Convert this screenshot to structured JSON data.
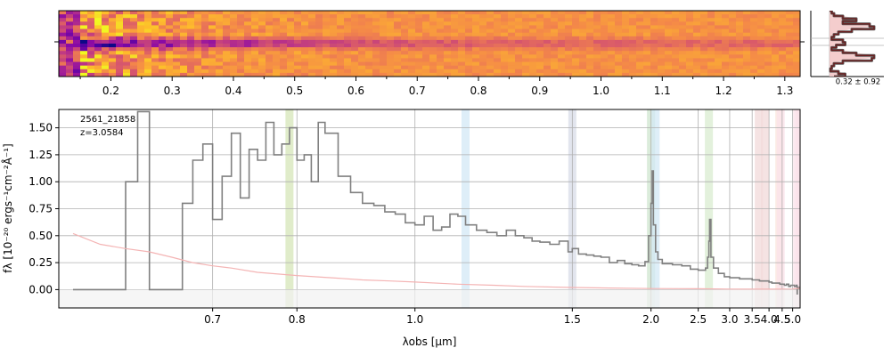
{
  "figure": {
    "object_id": "2561_21858",
    "redshift_label": "z=3.0584",
    "profile_stat": "0.32 ± 0.92"
  },
  "colors": {
    "spectrum": "#808080",
    "error": "#f4b4b4",
    "profile_line": "#6b1f1f",
    "profile_fill": "#f2c4c4",
    "axes": "#000000",
    "grid": "#b0b0b0"
  },
  "chart_data": [
    {
      "type": "heatmap",
      "name": "2D spectrum",
      "colormap": "plasma",
      "top_axis_ticks": [
        "0.2",
        "0.3",
        "0.4",
        "0.5",
        "0.6",
        "0.7",
        "0.8",
        "0.9",
        "1.0",
        "1.1",
        "1.2",
        "1.3"
      ],
      "top_axis_values": [
        0.2,
        0.3,
        0.4,
        0.5,
        0.6,
        0.7,
        0.8,
        0.9,
        1.0,
        1.1,
        1.2,
        1.3
      ],
      "trace": "bright horizontal trace at center, strongest at short wavelength"
    },
    {
      "type": "line",
      "name": "spatial profile",
      "annotation": "0.32 ± 0.92",
      "profile": [
        0.05,
        0.1,
        0.3,
        0.6,
        0.3,
        0.9,
        1.0,
        0.5,
        0.2,
        0.1,
        0.05,
        0.3,
        0.35,
        0.15,
        0.05,
        0.3,
        0.6,
        1.0,
        0.95,
        0.3,
        0.1,
        0.05,
        0.02,
        0.2,
        0.35,
        0.1
      ]
    },
    {
      "type": "line",
      "title": "",
      "xlabel": "λobs [μm]",
      "ylabel": "fλ [10⁻²⁰ ergs⁻¹cm⁻²Å⁻¹]",
      "x_scale": "reciprocal",
      "x_ticks": [
        "0.7",
        "0.8",
        "1.0",
        "1.5",
        "2.0",
        "2.5",
        "3.0",
        "3.5",
        "4.0",
        "4.5",
        "5.0"
      ],
      "x_tick_values": [
        0.7,
        0.8,
        1.0,
        1.5,
        2.0,
        2.5,
        3.0,
        3.5,
        4.0,
        4.5,
        5.0
      ],
      "y_ticks": [
        "0.00",
        "0.25",
        "0.50",
        "0.75",
        "1.00",
        "1.25",
        "1.50"
      ],
      "y_tick_values": [
        0.0,
        0.25,
        0.5,
        0.75,
        1.0,
        1.25,
        1.5
      ],
      "xlim": [
        0.57,
        5.43
      ],
      "ylim": [
        -0.17,
        1.67
      ],
      "grid": true,
      "legend": "none",
      "line_bands": [
        {
          "x": 0.79,
          "color": "#d6e6b8"
        },
        {
          "x": 1.12,
          "color": "#d3e8f6"
        },
        {
          "x": 1.5,
          "color": "#d8dce8"
        },
        {
          "x": 2.0,
          "color": "#cfe6cf"
        },
        {
          "x": 2.04,
          "color": "#d3e8f6"
        },
        {
          "x": 2.65,
          "color": "#d9ecd0"
        },
        {
          "x": 3.68,
          "color": "#f1dada"
        },
        {
          "x": 3.87,
          "color": "#f1dada"
        },
        {
          "x": 4.38,
          "color": "#fbe7dc"
        },
        {
          "x": 4.44,
          "color": "#fbe2ea"
        },
        {
          "x": 5.25,
          "color": "#fbe2ea"
        },
        {
          "x": 5.41,
          "color": "#fbe2ea"
        }
      ],
      "series": [
        {
          "role": "flux",
          "color": "#808080",
          "x": [
            0.58,
            0.6,
            0.61,
            0.62,
            0.63,
            0.64,
            0.65,
            0.66,
            0.67,
            0.68,
            0.69,
            0.7,
            0.71,
            0.72,
            0.73,
            0.74,
            0.75,
            0.76,
            0.77,
            0.78,
            0.79,
            0.8,
            0.81,
            0.82,
            0.83,
            0.84,
            0.86,
            0.88,
            0.9,
            0.92,
            0.94,
            0.96,
            0.98,
            1.0,
            1.02,
            1.04,
            1.06,
            1.08,
            1.1,
            1.12,
            1.15,
            1.18,
            1.21,
            1.24,
            1.27,
            1.3,
            1.33,
            1.36,
            1.4,
            1.44,
            1.48,
            1.5,
            1.53,
            1.57,
            1.61,
            1.65,
            1.7,
            1.75,
            1.8,
            1.85,
            1.9,
            1.95,
            1.98,
            2.0,
            2.01,
            2.02,
            2.04,
            2.06,
            2.1,
            2.15,
            2.2,
            2.3,
            2.4,
            2.5,
            2.55,
            2.6,
            2.63,
            2.65,
            2.66,
            2.68,
            2.72,
            2.8,
            2.9,
            3.0,
            3.1,
            3.2,
            3.3,
            3.4,
            3.5,
            3.6,
            3.7,
            3.8,
            3.9,
            4.0,
            4.1,
            4.2,
            4.3,
            4.4,
            4.5,
            4.6,
            4.7,
            4.8,
            4.9,
            5.0,
            5.1,
            5.2,
            5.24,
            5.25,
            5.26,
            5.3,
            5.35,
            5.42
          ],
          "y": [
            0.0,
            0.0,
            0.0,
            1.0,
            1.65,
            0.0,
            0.0,
            0.0,
            0.8,
            1.2,
            1.35,
            0.65,
            1.05,
            1.45,
            0.85,
            1.3,
            1.2,
            1.55,
            1.25,
            1.35,
            1.5,
            1.2,
            1.25,
            1.0,
            1.55,
            1.45,
            1.05,
            0.9,
            0.8,
            0.78,
            0.72,
            0.7,
            0.62,
            0.6,
            0.68,
            0.55,
            0.58,
            0.7,
            0.68,
            0.6,
            0.55,
            0.53,
            0.5,
            0.55,
            0.5,
            0.48,
            0.45,
            0.44,
            0.42,
            0.45,
            0.35,
            0.38,
            0.33,
            0.32,
            0.31,
            0.3,
            0.25,
            0.27,
            0.24,
            0.23,
            0.22,
            0.26,
            0.5,
            0.8,
            1.1,
            0.6,
            0.35,
            0.28,
            0.24,
            0.24,
            0.23,
            0.22,
            0.19,
            0.18,
            0.18,
            0.2,
            0.3,
            0.45,
            0.65,
            0.3,
            0.2,
            0.15,
            0.12,
            0.11,
            0.11,
            0.1,
            0.1,
            0.1,
            0.09,
            0.09,
            0.08,
            0.08,
            0.08,
            0.07,
            0.06,
            0.06,
            0.06,
            0.05,
            0.05,
            0.04,
            0.05,
            0.03,
            0.04,
            0.04,
            0.03,
            0.04,
            0.03,
            -0.04,
            0.02,
            0.01,
            0.02,
            0.01
          ]
        },
        {
          "role": "error",
          "color": "#f4b4b4",
          "x": [
            0.58,
            0.6,
            0.62,
            0.64,
            0.66,
            0.68,
            0.7,
            0.72,
            0.75,
            0.8,
            0.85,
            0.9,
            0.95,
            1.0,
            1.1,
            1.2,
            1.3,
            1.5,
            1.7,
            2.0,
            2.5,
            3.0,
            4.0,
            5.0,
            5.42
          ],
          "y": [
            0.52,
            0.42,
            0.38,
            0.35,
            0.3,
            0.25,
            0.22,
            0.2,
            0.16,
            0.13,
            0.11,
            0.09,
            0.08,
            0.07,
            0.05,
            0.04,
            0.03,
            0.02,
            0.015,
            0.01,
            0.008,
            0.005,
            0.004,
            0.006,
            0.012
          ]
        }
      ]
    }
  ]
}
